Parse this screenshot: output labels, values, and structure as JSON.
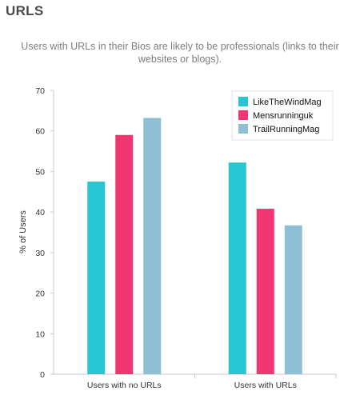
{
  "header": {
    "title": "URLS"
  },
  "chart_data": {
    "type": "bar",
    "title": "Users with URLs in their Bios are likely to be professionals (links to their websites or blogs).",
    "xlabel": "",
    "ylabel": "% of Users",
    "ylim": [
      0,
      70
    ],
    "yticks": [
      0,
      10,
      20,
      30,
      40,
      50,
      60,
      70
    ],
    "categories": [
      "Users with no URLs",
      "Users with URLs"
    ],
    "series": [
      {
        "name": "LikeTheWindMag",
        "color": "#27c6d2",
        "values": [
          47.5,
          52.2
        ]
      },
      {
        "name": "Mensrunninguk",
        "color": "#ef3670",
        "values": [
          59,
          40.8
        ]
      },
      {
        "name": "TrailRunningMag",
        "color": "#8ebfd4",
        "values": [
          63.2,
          36.7
        ]
      }
    ],
    "legend_position": "top-right",
    "grid": false
  }
}
